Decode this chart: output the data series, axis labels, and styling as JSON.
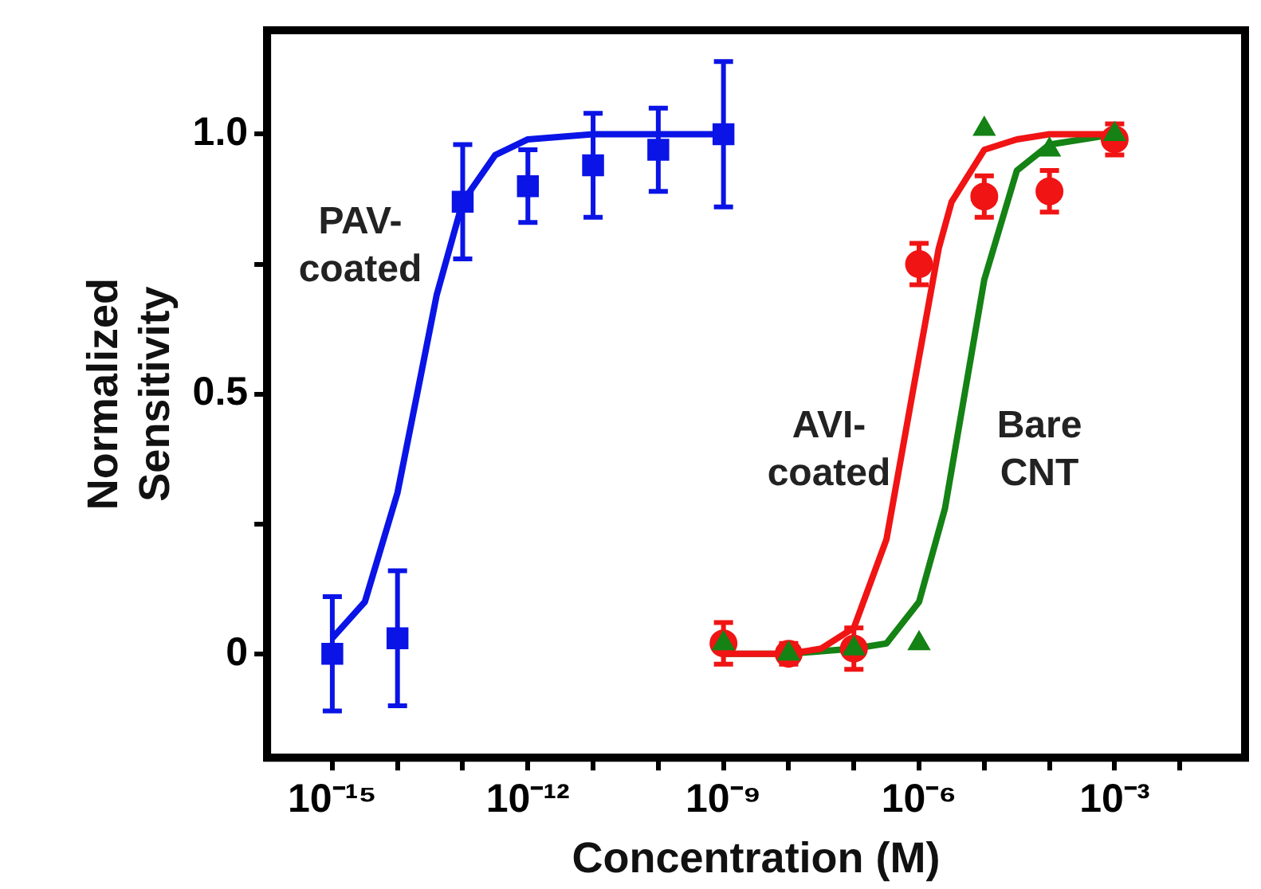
{
  "chart_data": {
    "type": "scatter",
    "xlabel": "Concentration (M)",
    "ylabel": "Normalized Sensitivity",
    "log": "x",
    "xlim": [
      1e-16,
      0.1
    ],
    "xticks": [
      {
        "value": 1e-15,
        "label": "10⁻¹⁵"
      },
      {
        "value": 1e-14,
        "label": null
      },
      {
        "value": 1e-13,
        "label": null
      },
      {
        "value": 1e-12,
        "label": "10⁻¹²"
      },
      {
        "value": 1e-11,
        "label": null
      },
      {
        "value": 1e-10,
        "label": null
      },
      {
        "value": 1e-09,
        "label": "10⁻⁹"
      },
      {
        "value": 1e-08,
        "label": null
      },
      {
        "value": 1e-07,
        "label": null
      },
      {
        "value": 1e-06,
        "label": "10⁻⁶"
      },
      {
        "value": 1e-05,
        "label": null
      },
      {
        "value": 0.0001,
        "label": null
      },
      {
        "value": 0.001,
        "label": "10⁻³"
      },
      {
        "value": 0.01,
        "label": null
      }
    ],
    "ylim": [
      -0.2,
      1.2
    ],
    "yticks": [
      {
        "value": 0,
        "label": "0"
      },
      {
        "value": 0.25,
        "label": null
      },
      {
        "value": 0.5,
        "label": "0.5"
      },
      {
        "value": 0.75,
        "label": null
      },
      {
        "value": 1,
        "label": "1.0"
      }
    ],
    "series": [
      {
        "type": "scatter",
        "marker": "square",
        "color": "#0a14e6",
        "x": [
          1e-15,
          1e-14,
          1e-13,
          1e-12,
          1e-11,
          1e-10,
          1e-09
        ],
        "values": [
          0.0,
          0.03,
          0.87,
          0.9,
          0.94,
          0.97,
          1.0
        ],
        "errors": [
          0.11,
          0.13,
          0.11,
          0.07,
          0.1,
          0.08,
          0.14
        ]
      },
      {
        "type": "scatter",
        "marker": "circle",
        "color": "#f01414",
        "x": [
          1e-09,
          1e-08,
          1e-07,
          1e-06,
          1e-05,
          0.0001,
          0.001
        ],
        "values": [
          0.02,
          0.0,
          0.01,
          0.75,
          0.88,
          0.89,
          0.99
        ],
        "errors": [
          0.04,
          0.02,
          0.04,
          0.04,
          0.04,
          0.04,
          0.03
        ]
      },
      {
        "type": "scatter",
        "marker": "triangle",
        "color": "#148214",
        "x": [
          1e-09,
          1e-08,
          1e-07,
          1e-06,
          1e-05,
          0.0001,
          0.001
        ],
        "values": [
          0.02,
          0.0,
          0.01,
          0.02,
          1.01,
          0.97,
          1.0
        ]
      },
      {
        "name": "PAV-coated",
        "type": "line",
        "marker": "none",
        "color": "#0a14e6",
        "x": [
          1e-15,
          3.16e-15,
          1e-14,
          2e-14,
          3.98e-14,
          1e-13,
          3.16e-13,
          1e-12,
          1e-11,
          1e-10,
          1e-09
        ],
        "values": [
          0.03,
          0.1,
          0.31,
          0.5,
          0.69,
          0.87,
          0.96,
          0.99,
          1.0,
          1.0,
          1.0
        ]
      },
      {
        "name": "AVI-coated",
        "type": "line",
        "marker": "none",
        "color": "#f01414",
        "x": [
          1e-09,
          1e-08,
          3.16e-08,
          1e-07,
          3.16e-07,
          7.9e-07,
          2e-06,
          3.16e-06,
          1e-05,
          3.16e-05,
          0.0001,
          0.001
        ],
        "values": [
          0.0,
          0.0,
          0.01,
          0.05,
          0.22,
          0.5,
          0.78,
          0.87,
          0.97,
          0.99,
          1.0,
          1.0
        ]
      },
      {
        "name": "Bare CNT",
        "type": "line",
        "marker": "none",
        "color": "#148214",
        "x": [
          1e-09,
          1e-08,
          1e-07,
          3.16e-07,
          1e-06,
          2.5e-06,
          5e-06,
          1e-05,
          3.16e-05,
          0.0001,
          0.001
        ],
        "values": [
          0.0,
          0.0,
          0.01,
          0.02,
          0.1,
          0.28,
          0.5,
          0.72,
          0.93,
          0.98,
          1.0
        ]
      }
    ]
  }
}
